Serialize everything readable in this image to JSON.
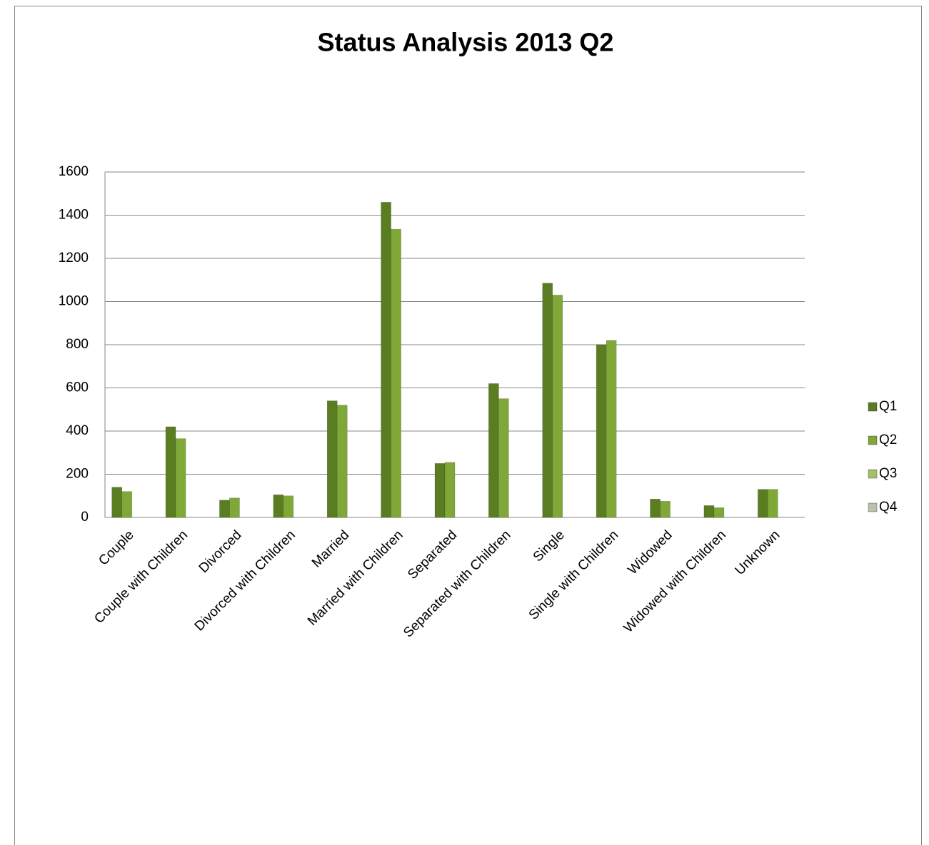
{
  "chart_data": {
    "type": "bar",
    "title": "Status Analysis 2013 Q2",
    "categories": [
      "Couple",
      "Couple with Children",
      "Divorced",
      "Divorced with Children",
      "Married",
      "Married with Children",
      "Separated",
      "Separated with Children",
      "Single",
      "Single with Children",
      "Widowed",
      "Widowed with Children",
      "Unknown"
    ],
    "series": [
      {
        "name": "Q1",
        "color": "#5b7d22",
        "values": [
          140,
          420,
          80,
          105,
          540,
          1460,
          250,
          620,
          1085,
          800,
          85,
          55,
          130
        ]
      },
      {
        "name": "Q2",
        "color": "#7fa838",
        "values": [
          120,
          365,
          90,
          100,
          520,
          1335,
          255,
          550,
          1030,
          820,
          75,
          45,
          130
        ]
      },
      {
        "name": "Q3",
        "color": "#a3c065",
        "values": [
          null,
          null,
          null,
          null,
          null,
          null,
          null,
          null,
          null,
          null,
          null,
          null,
          null
        ]
      },
      {
        "name": "Q4",
        "color": "#b9c2ad",
        "values": [
          null,
          null,
          null,
          null,
          null,
          null,
          null,
          null,
          null,
          null,
          null,
          null,
          null
        ]
      }
    ],
    "ylim": [
      0,
      1600
    ],
    "yticks": [
      0,
      200,
      400,
      600,
      800,
      1000,
      1200,
      1400,
      1600
    ],
    "grid": true,
    "legend": "right"
  }
}
